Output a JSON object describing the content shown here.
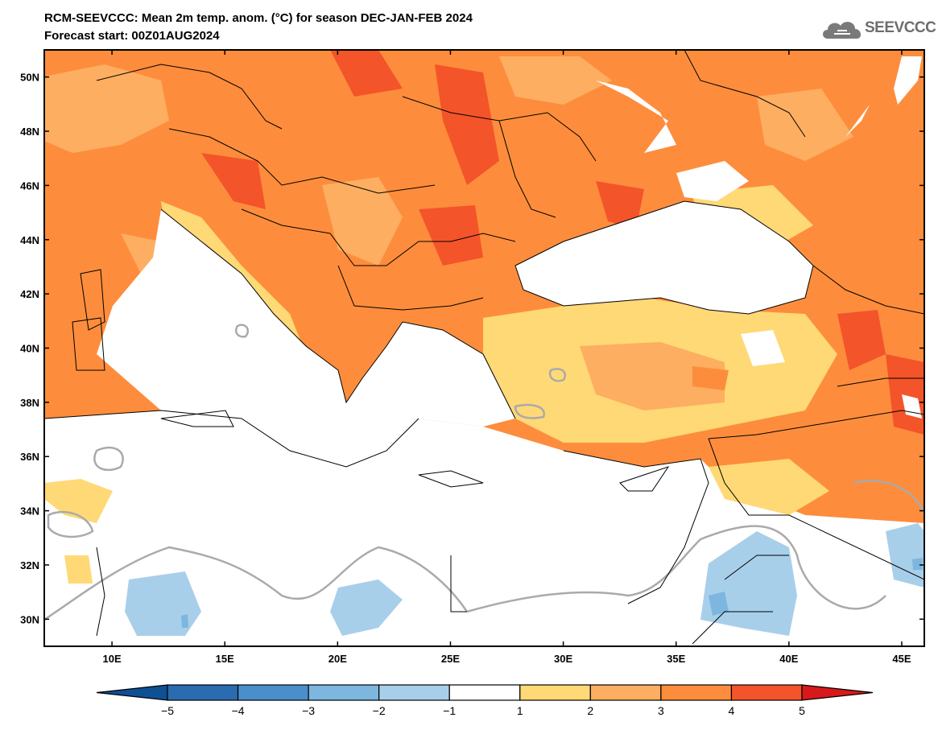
{
  "header": {
    "title": "RCM-SEEVCCC: Mean 2m temp. anom. (°C) for season DEC-JAN-FEB 2024",
    "subtitle": "Forecast start: 00Z01AUG2024"
  },
  "logo": {
    "text": "SEEVCCC",
    "icon": "cloud-icon"
  },
  "map": {
    "projection": "lat-lon",
    "lon_range": [
      7,
      46
    ],
    "lat_range": [
      29,
      51
    ],
    "lat_ticks": [
      "50N",
      "48N",
      "46N",
      "44N",
      "42N",
      "40N",
      "38N",
      "36N",
      "34N",
      "32N",
      "30N"
    ],
    "lon_ticks": [
      "10E",
      "15E",
      "20E",
      "25E",
      "30E",
      "35E",
      "40E",
      "45E"
    ],
    "sea_color": "#ffffff",
    "border_color": "#000000",
    "zero_contour_color": "#aaaaaa"
  },
  "colorbar": {
    "labels": [
      "−5",
      "−4",
      "−3",
      "−2",
      "−1",
      "1",
      "2",
      "3",
      "4",
      "5"
    ],
    "bin_colors": [
      "#0f4f94",
      "#2b6cb0",
      "#4a8fcc",
      "#7db6de",
      "#a8cfea",
      "#ffffff",
      "#fed976",
      "#fdae61",
      "#fd8d3c",
      "#f4542a",
      "#d7191c"
    ],
    "extend": "both"
  }
}
